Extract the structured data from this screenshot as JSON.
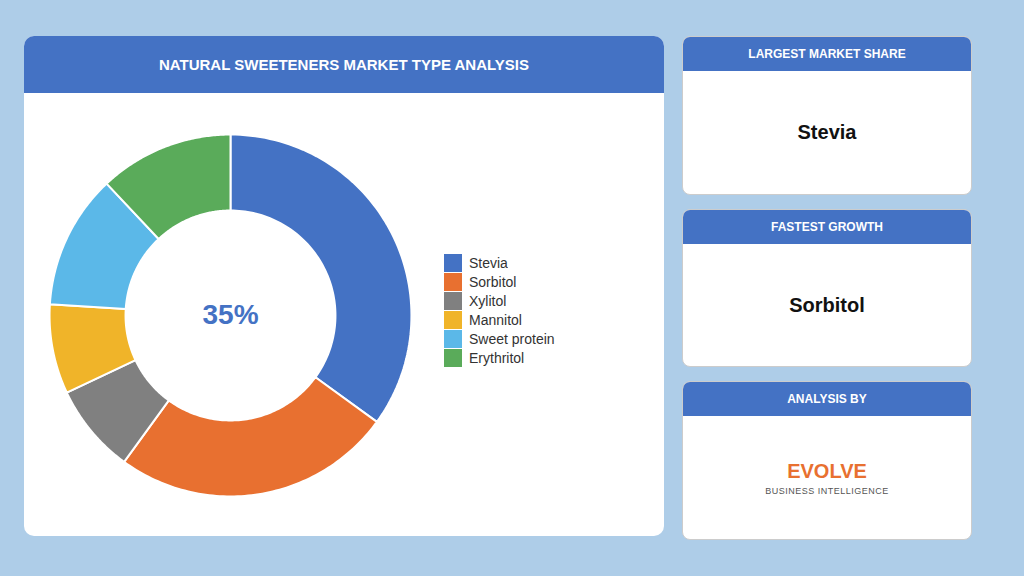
{
  "chart_data": {
    "type": "pie",
    "title": "NATURAL SWEETENERS MARKET TYPE ANALYSIS",
    "categories": [
      "Stevia",
      "Sorbitol",
      "Xylitol",
      "Mannitol",
      "Sweet protein",
      "Erythritol"
    ],
    "values": [
      35,
      25,
      8,
      8,
      12,
      12
    ],
    "colors": [
      "#4472c4",
      "#e87030",
      "#808080",
      "#f0b429",
      "#5bb8e8",
      "#5aab5a"
    ],
    "legend": "right",
    "annotations": [
      {
        "text": "35%",
        "color": "#4472c4"
      },
      {
        "title": "LARGEST MARKET SHARE",
        "text": "Stevia"
      },
      {
        "title": "FASTEST GROWTH",
        "text": "Sorbitol"
      },
      {
        "title": "ANALYSIS BY",
        "text": "EVOLVE",
        "subtitle": "BUSINESS INTELLIGENCE",
        "color": "#e87030"
      }
    ]
  }
}
